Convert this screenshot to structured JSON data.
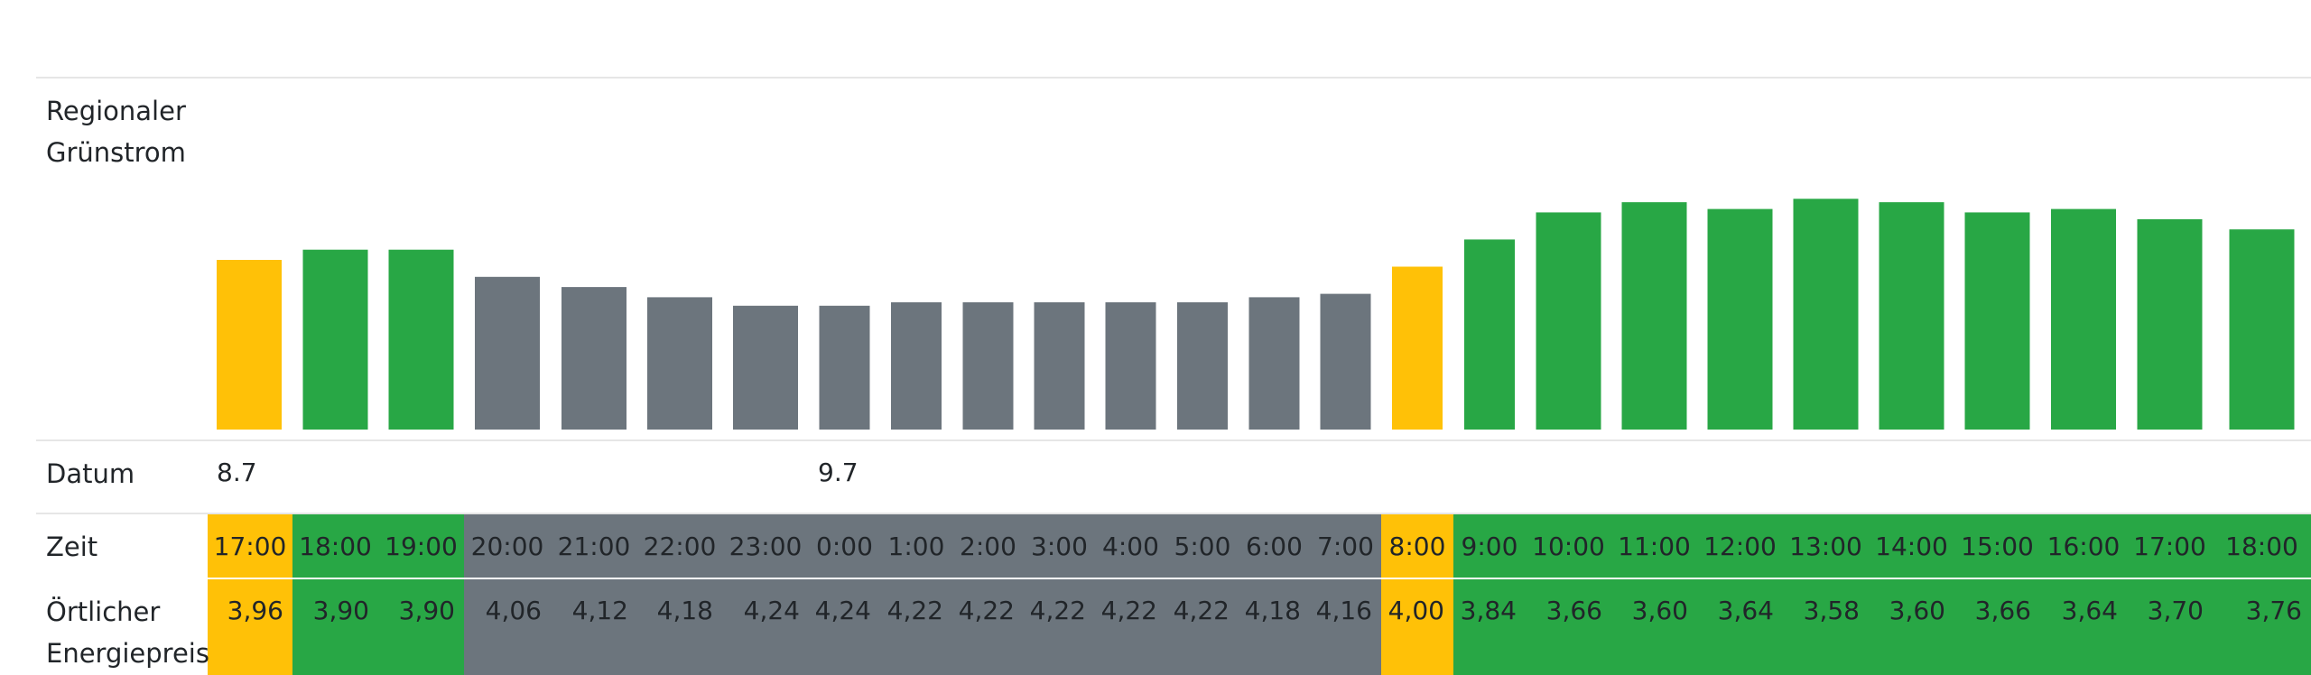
{
  "colors": {
    "green": "#28a745",
    "yellow": "#ffc107",
    "gray": "#6c757d",
    "text": "#212529",
    "divider": "#e6e6e6"
  },
  "labels": {
    "regional_line1": "Regionaler",
    "regional_line2": "Grünstrom",
    "datum": "Datum",
    "zeit": "Zeit",
    "price_line1": "Örtlicher",
    "price_line2": "Energiepreis"
  },
  "dates": [
    {
      "label": "8.7",
      "slot": 0
    },
    {
      "label": "9.7",
      "slot": 7
    }
  ],
  "chart_data": {
    "type": "bar",
    "title": "Regionaler Grünstrom",
    "xlabel": "Zeit",
    "ylabel": "",
    "categories": [
      "17:00",
      "18:00",
      "19:00",
      "20:00",
      "21:00",
      "22:00",
      "23:00",
      "0:00",
      "1:00",
      "2:00",
      "3:00",
      "4:00",
      "5:00",
      "6:00",
      "7:00",
      "8:00",
      "9:00",
      "10:00",
      "11:00",
      "12:00",
      "13:00",
      "14:00",
      "15:00",
      "16:00",
      "17:00",
      "18:00"
    ],
    "values": [
      50,
      53,
      53,
      45,
      42,
      39,
      36.5,
      36.5,
      37.5,
      37.5,
      37.5,
      37.5,
      37.5,
      39,
      40,
      48,
      56,
      64,
      67,
      65,
      68,
      67,
      64,
      65,
      62,
      59
    ],
    "status": [
      "yellow",
      "green",
      "green",
      "gray",
      "gray",
      "gray",
      "gray",
      "gray",
      "gray",
      "gray",
      "gray",
      "gray",
      "gray",
      "gray",
      "gray",
      "yellow",
      "green",
      "green",
      "green",
      "green",
      "green",
      "green",
      "green",
      "green",
      "green",
      "green"
    ],
    "prices": [
      "3,96",
      "3,90",
      "3,90",
      "4,06",
      "4,12",
      "4,18",
      "4,24",
      "4,24",
      "4,22",
      "4,22",
      "4,22",
      "4,22",
      "4,22",
      "4,18",
      "4,16",
      "4,00",
      "3,84",
      "3,66",
      "3,60",
      "3,64",
      "3,58",
      "3,60",
      "3,66",
      "3,64",
      "3,70",
      "3,76"
    ],
    "ylim": [
      0,
      100
    ],
    "grid": false,
    "legend": "none"
  }
}
